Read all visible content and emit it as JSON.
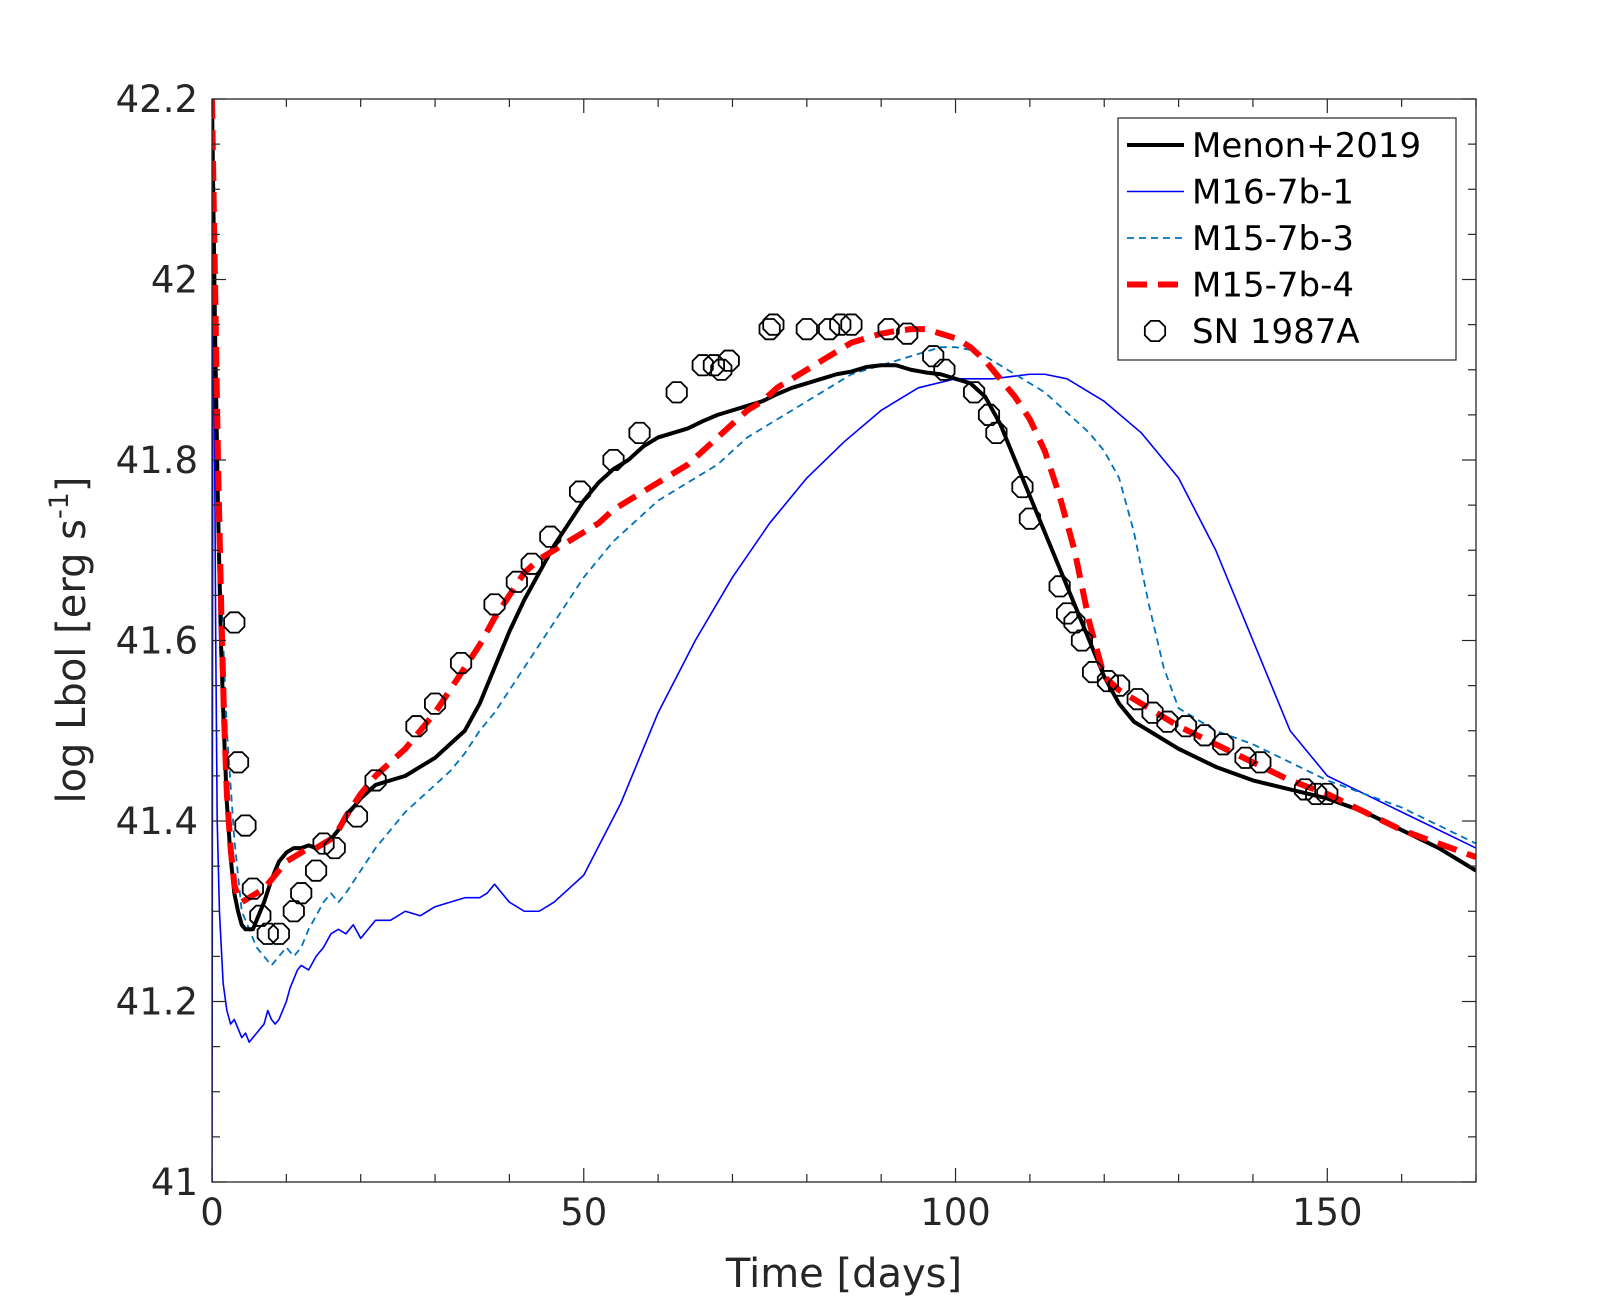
{
  "chart_data": {
    "type": "line",
    "title": "",
    "xlabel": "Time [days]",
    "ylabel_main": "log Lbol [erg s",
    "ylabel_sup": "-1",
    "ylabel_close": "]",
    "xlim": [
      0,
      170
    ],
    "ylim": [
      41,
      42.2
    ],
    "xticks": [
      0,
      50,
      100,
      150
    ],
    "xtick_labels": [
      "0",
      "50",
      "100",
      "150"
    ],
    "yticks": [
      41,
      41.2,
      41.4,
      41.6,
      41.8,
      42,
      42.2
    ],
    "ytick_labels": [
      "41",
      "41.2",
      "41.4",
      "41.6",
      "41.8",
      "42",
      "42.2"
    ],
    "grid": false,
    "legend_position": "top-right",
    "series": [
      {
        "name": "Menon+2019",
        "style": "solid",
        "color": "#000000",
        "x": [
          0,
          0.4,
          0.8,
          1.2,
          1.6,
          2,
          2.5,
          3,
          3.5,
          4,
          4.5,
          5,
          5.5,
          6,
          7,
          8,
          9,
          10,
          11,
          12,
          13,
          14,
          15,
          16,
          17,
          18,
          20,
          22,
          24,
          26,
          28,
          30,
          32,
          34,
          36,
          38,
          40,
          42,
          44,
          46,
          48,
          50,
          52,
          54,
          56,
          58,
          60,
          62,
          64,
          66,
          68,
          70,
          72,
          74,
          76,
          78,
          80,
          82,
          84,
          86,
          88,
          90,
          92,
          94,
          96,
          98,
          100,
          102,
          104,
          106,
          108,
          110,
          112,
          114,
          116,
          118,
          120,
          122,
          124,
          126,
          128,
          130,
          135,
          140,
          145,
          150,
          155,
          160,
          165,
          170
        ],
        "y": [
          42.2,
          41.95,
          41.75,
          41.6,
          41.5,
          41.42,
          41.36,
          41.32,
          41.3,
          41.285,
          41.28,
          41.28,
          41.28,
          41.29,
          41.31,
          41.335,
          41.355,
          41.365,
          41.37,
          41.37,
          41.373,
          41.37,
          41.375,
          41.38,
          41.39,
          41.405,
          41.425,
          41.44,
          41.445,
          41.45,
          41.46,
          41.47,
          41.485,
          41.5,
          41.53,
          41.57,
          41.61,
          41.645,
          41.675,
          41.705,
          41.73,
          41.755,
          41.775,
          41.79,
          41.8,
          41.815,
          41.825,
          41.83,
          41.835,
          41.843,
          41.85,
          41.855,
          41.86,
          41.865,
          41.873,
          41.88,
          41.885,
          41.89,
          41.895,
          41.898,
          41.903,
          41.905,
          41.905,
          41.9,
          41.897,
          41.895,
          41.89,
          41.885,
          41.87,
          41.84,
          41.8,
          41.76,
          41.72,
          41.68,
          41.64,
          41.6,
          41.56,
          41.53,
          41.51,
          41.5,
          41.49,
          41.48,
          41.46,
          41.445,
          41.435,
          41.425,
          41.41,
          41.39,
          41.37,
          41.345
        ]
      },
      {
        "name": "M16-7b-1",
        "style": "solid-thin",
        "color": "#0000ff",
        "x": [
          0,
          0.15,
          0.3,
          0.5,
          0.7,
          1,
          1.5,
          2,
          2.5,
          3,
          3.5,
          4,
          4.5,
          5,
          5.5,
          6,
          6.5,
          7,
          7.5,
          8,
          8.5,
          9,
          9.5,
          10,
          10.5,
          11,
          11.5,
          12,
          13,
          14,
          15,
          16,
          17,
          18,
          19,
          20,
          21,
          22,
          24,
          26,
          28,
          30,
          32,
          34,
          36,
          37,
          38,
          40,
          42,
          44,
          46,
          48,
          50,
          55,
          60,
          65,
          70,
          75,
          80,
          85,
          90,
          95,
          100,
          105,
          108,
          110,
          112,
          115,
          118,
          120,
          125,
          130,
          135,
          140,
          145,
          150,
          155,
          160,
          165,
          170
        ],
        "y": [
          41.0,
          42.2,
          41.9,
          41.6,
          41.4,
          41.3,
          41.22,
          41.19,
          41.175,
          41.18,
          41.17,
          41.16,
          41.165,
          41.155,
          41.16,
          41.165,
          41.17,
          41.175,
          41.19,
          41.18,
          41.175,
          41.18,
          41.19,
          41.2,
          41.215,
          41.225,
          41.235,
          41.24,
          41.235,
          41.25,
          41.26,
          41.275,
          41.28,
          41.275,
          41.285,
          41.27,
          41.28,
          41.29,
          41.29,
          41.3,
          41.295,
          41.305,
          41.31,
          41.315,
          41.315,
          41.32,
          41.33,
          41.31,
          41.3,
          41.3,
          41.31,
          41.325,
          41.34,
          41.42,
          41.52,
          41.6,
          41.67,
          41.73,
          41.78,
          41.82,
          41.855,
          41.88,
          41.89,
          41.89,
          41.893,
          41.895,
          41.895,
          41.89,
          41.875,
          41.865,
          41.83,
          41.78,
          41.7,
          41.6,
          41.5,
          41.45,
          41.43,
          41.41,
          41.39,
          41.37
        ]
      },
      {
        "name": "M15-7b-3",
        "style": "dashed-thin",
        "color": "#0072bd",
        "x": [
          0,
          0.3,
          0.6,
          1,
          1.5,
          2,
          3,
          4,
          5,
          6,
          7,
          8,
          9,
          10,
          11,
          12,
          13,
          14,
          15,
          16,
          17,
          18,
          20,
          22,
          24,
          26,
          28,
          30,
          32,
          34,
          36,
          38,
          40,
          42,
          44,
          46,
          48,
          50,
          52,
          54,
          56,
          58,
          60,
          62,
          64,
          66,
          68,
          70,
          72,
          74,
          76,
          78,
          80,
          82,
          84,
          86,
          88,
          90,
          92,
          94,
          96,
          98,
          100,
          102,
          104,
          106,
          108,
          110,
          112,
          114,
          116,
          118,
          120,
          122,
          124,
          126,
          128,
          130,
          135,
          140,
          145,
          150,
          155,
          160,
          165,
          170
        ],
        "y": [
          42.2,
          41.95,
          41.8,
          41.7,
          41.6,
          41.5,
          41.38,
          41.3,
          41.28,
          41.26,
          41.25,
          41.24,
          41.25,
          41.26,
          41.25,
          41.26,
          41.28,
          41.295,
          41.31,
          41.32,
          41.31,
          41.32,
          41.345,
          41.37,
          41.39,
          41.41,
          41.425,
          41.44,
          41.455,
          41.475,
          41.5,
          41.52,
          41.545,
          41.57,
          41.595,
          41.62,
          41.645,
          41.67,
          41.69,
          41.71,
          41.725,
          41.74,
          41.755,
          41.765,
          41.775,
          41.785,
          41.795,
          41.81,
          41.825,
          41.835,
          41.845,
          41.855,
          41.865,
          41.875,
          41.885,
          41.895,
          41.9,
          41.905,
          41.91,
          41.915,
          41.92,
          41.925,
          41.925,
          41.922,
          41.915,
          41.905,
          41.895,
          41.885,
          41.875,
          41.86,
          41.845,
          41.83,
          41.81,
          41.78,
          41.72,
          41.64,
          41.57,
          41.525,
          41.5,
          41.485,
          41.465,
          41.445,
          41.43,
          41.415,
          41.395,
          41.375
        ]
      },
      {
        "name": "M15-7b-4",
        "style": "dashed-thick",
        "color": "#ff0000",
        "x": [
          0,
          0.4,
          0.8,
          1.2,
          1.6,
          2,
          2.5,
          3,
          3.5,
          4,
          5,
          6,
          7,
          8,
          9,
          10,
          11,
          12,
          13,
          14,
          15,
          16,
          17,
          18,
          20,
          22,
          24,
          26,
          28,
          30,
          32,
          34,
          36,
          38,
          40,
          42,
          44,
          46,
          48,
          50,
          52,
          54,
          56,
          58,
          60,
          62,
          64,
          66,
          68,
          70,
          72,
          74,
          76,
          78,
          80,
          82,
          84,
          86,
          88,
          90,
          92,
          94,
          96,
          98,
          100,
          102,
          104,
          106,
          108,
          110,
          112,
          114,
          116,
          118,
          120,
          122,
          124,
          126,
          128,
          130,
          135,
          140,
          145,
          150,
          155,
          160,
          165,
          170
        ],
        "y": [
          42.2,
          42.0,
          41.8,
          41.65,
          41.52,
          41.43,
          41.37,
          41.33,
          41.315,
          41.31,
          41.315,
          41.32,
          41.325,
          41.335,
          41.345,
          41.355,
          41.36,
          41.365,
          41.37,
          41.37,
          41.375,
          41.38,
          41.39,
          41.405,
          41.43,
          41.45,
          41.465,
          41.48,
          41.5,
          41.52,
          41.545,
          41.57,
          41.595,
          41.625,
          41.65,
          41.675,
          41.69,
          41.7,
          41.71,
          41.72,
          41.73,
          41.745,
          41.755,
          41.765,
          41.775,
          41.785,
          41.795,
          41.81,
          41.825,
          41.84,
          41.855,
          41.865,
          41.88,
          41.89,
          41.9,
          41.91,
          41.92,
          41.93,
          41.935,
          41.94,
          41.943,
          41.945,
          41.945,
          41.94,
          41.935,
          41.925,
          41.91,
          41.89,
          41.87,
          41.845,
          41.81,
          41.76,
          41.7,
          41.62,
          41.56,
          41.545,
          41.535,
          41.525,
          41.515,
          41.505,
          41.485,
          41.465,
          41.445,
          41.43,
          41.41,
          41.39,
          41.375,
          41.36
        ]
      },
      {
        "name": "SN 1987A",
        "style": "markers-hexagon",
        "color": "#000000",
        "x": [
          3.0,
          3.5,
          4.5,
          5.5,
          6.5,
          7.5,
          9.0,
          11.0,
          12.0,
          14.0,
          15.0,
          16.5,
          19.5,
          22.0,
          27.5,
          30.0,
          33.5,
          38.0,
          41.0,
          43.0,
          45.5,
          49.5,
          54.0,
          57.5,
          62.5,
          66.0,
          67.5,
          68.5,
          69.5,
          75.0,
          75.5,
          80.0,
          83.0,
          84.5,
          86.0,
          91.0,
          93.5,
          97.0,
          98.5,
          102.5,
          104.5,
          105.5,
          109.0,
          110.0,
          114.0,
          115.0,
          116.0,
          117.0,
          118.5,
          120.5,
          122.0,
          124.5,
          126.5,
          128.5,
          131.0,
          133.5,
          136.0,
          139.0,
          141.0,
          147.0,
          148.5,
          150.0
        ],
        "y": [
          41.62,
          41.465,
          41.395,
          41.325,
          41.295,
          41.275,
          41.275,
          41.3,
          41.32,
          41.345,
          41.375,
          41.37,
          41.405,
          41.445,
          41.505,
          41.53,
          41.575,
          41.64,
          41.665,
          41.685,
          41.715,
          41.765,
          41.8,
          41.83,
          41.875,
          41.905,
          41.905,
          41.9,
          41.91,
          41.945,
          41.95,
          41.945,
          41.945,
          41.95,
          41.95,
          41.945,
          41.94,
          41.915,
          41.9,
          41.875,
          41.85,
          41.83,
          41.77,
          41.735,
          41.66,
          41.63,
          41.62,
          41.6,
          41.565,
          41.555,
          41.55,
          41.535,
          41.52,
          41.51,
          41.505,
          41.495,
          41.485,
          41.47,
          41.465,
          41.435,
          41.43,
          41.43
        ]
      }
    ]
  }
}
